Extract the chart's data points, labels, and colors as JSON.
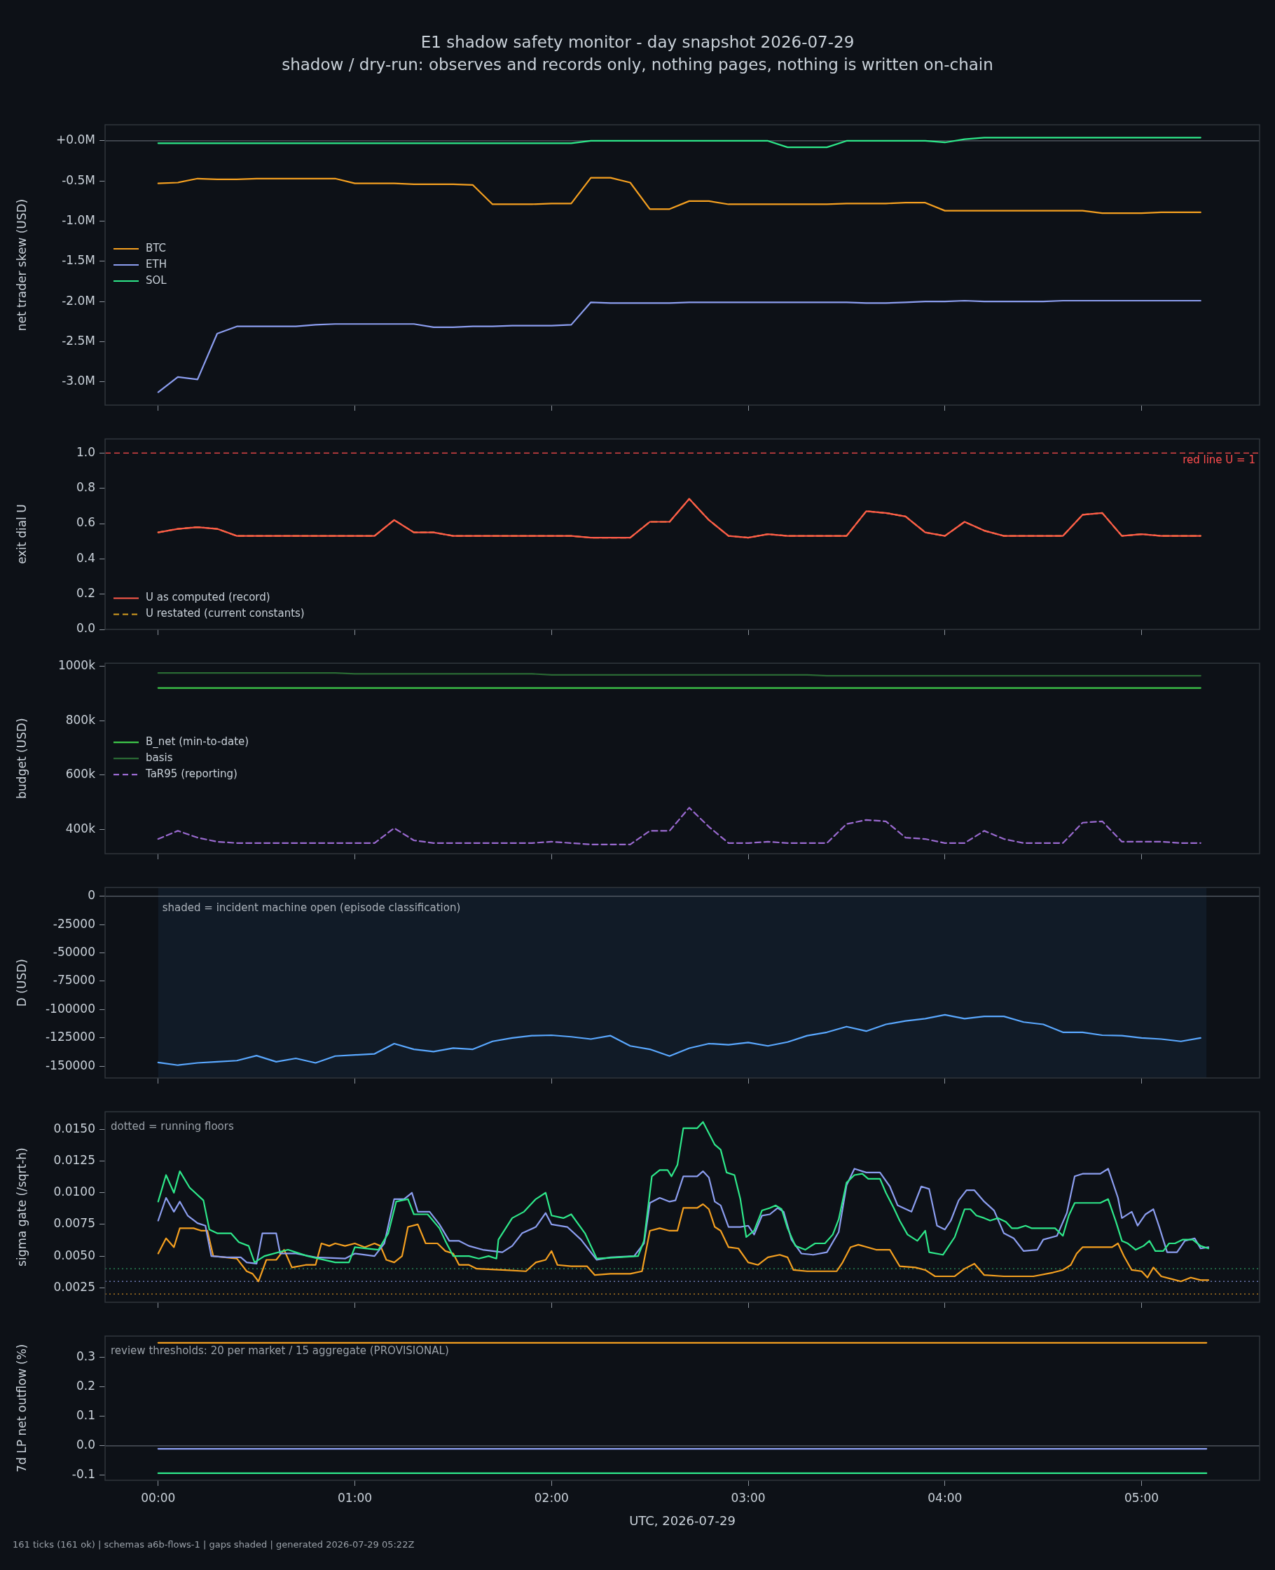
{
  "chart_data": [
    {
      "type": "line",
      "title": "E1 shadow safety monitor - day snapshot 2026-07-29",
      "subtitle": "shadow / dry-run: observes and records only, nothing pages, nothing is written on-chain",
      "ylabel": "net trader skew (USD)",
      "legend": "left",
      "tick_labels": "y",
      "xlim": [
        -0.27,
        5.6
      ],
      "xticks": [
        {
          "value": 0,
          "label": null
        },
        {
          "value": 1,
          "label": null
        },
        {
          "value": 2,
          "label": null
        },
        {
          "value": 3,
          "label": null
        },
        {
          "value": 4,
          "label": null
        },
        {
          "value": 5,
          "label": null
        }
      ],
      "ylim": [
        -3.29,
        0.2
      ],
      "yticks": [
        {
          "value": 0,
          "label": "+0.0M"
        },
        {
          "value": -0.5,
          "label": "-0.5M"
        },
        {
          "value": -1,
          "label": "-1.0M"
        },
        {
          "value": -1.5,
          "label": "-1.5M"
        },
        {
          "value": -2,
          "label": "-2.0M"
        },
        {
          "value": -2.5,
          "label": "-2.5M"
        },
        {
          "value": -3,
          "label": "-3.0M"
        }
      ],
      "ref_lines": [
        {
          "axis": "y",
          "value": 0,
          "color": "#5a616b"
        }
      ],
      "x": [
        0,
        0.1,
        0.2,
        0.3,
        0.4,
        0.5,
        0.6,
        0.7,
        0.8,
        0.9,
        1,
        1.1,
        1.2,
        1.3,
        1.4,
        1.5,
        1.6,
        1.7,
        1.8,
        1.9,
        2,
        2.1,
        2.2,
        2.3,
        2.4,
        2.5,
        2.6,
        2.7,
        2.8,
        2.9,
        3,
        3.1,
        3.2,
        3.3,
        3.4,
        3.5,
        3.6,
        3.7,
        3.8,
        3.9,
        4,
        4.1,
        4.2,
        4.3,
        4.4,
        4.5,
        4.6,
        4.7,
        4.8,
        4.9,
        5,
        5.1,
        5.2,
        5.3
      ],
      "series": [
        {
          "name": "BTC",
          "color": "#f5a020",
          "values": [
            -0.53,
            -0.52,
            -0.47,
            -0.48,
            -0.48,
            -0.47,
            -0.47,
            -0.47,
            -0.47,
            -0.47,
            -0.53,
            -0.53,
            -0.53,
            -0.54,
            -0.54,
            -0.54,
            -0.55,
            -0.79,
            -0.79,
            -0.79,
            -0.78,
            -0.78,
            -0.46,
            -0.46,
            -0.52,
            -0.85,
            -0.85,
            -0.75,
            -0.75,
            -0.79,
            -0.79,
            -0.79,
            -0.79,
            -0.79,
            -0.79,
            -0.78,
            -0.78,
            -0.78,
            -0.77,
            -0.77,
            -0.87,
            -0.87,
            -0.87,
            -0.87,
            -0.87,
            -0.87,
            -0.87,
            -0.87,
            -0.9,
            -0.9,
            -0.9,
            -0.89,
            -0.89,
            -0.89
          ]
        },
        {
          "name": "ETH",
          "color": "#8c9ef0",
          "values": [
            -3.13,
            -2.94,
            -2.97,
            -2.4,
            -2.31,
            -2.31,
            -2.31,
            -2.31,
            -2.29,
            -2.28,
            -2.28,
            -2.28,
            -2.28,
            -2.28,
            -2.32,
            -2.32,
            -2.31,
            -2.31,
            -2.3,
            -2.3,
            -2.3,
            -2.29,
            -2.01,
            -2.02,
            -2.02,
            -2.02,
            -2.02,
            -2.01,
            -2.01,
            -2.01,
            -2.01,
            -2.01,
            -2.01,
            -2.01,
            -2.01,
            -2.01,
            -2.02,
            -2.02,
            -2.01,
            -2,
            -2,
            -1.99,
            -2,
            -2,
            -2,
            -2,
            -1.99,
            -1.99,
            -1.99,
            -1.99,
            -1.99,
            -1.99,
            -1.99,
            -1.99
          ]
        },
        {
          "name": "SOL",
          "color": "#2ee88a",
          "values": [
            -0.03,
            -0.03,
            -0.03,
            -0.03,
            -0.03,
            -0.03,
            -0.03,
            -0.03,
            -0.03,
            -0.03,
            -0.03,
            -0.03,
            -0.03,
            -0.03,
            -0.03,
            -0.03,
            -0.03,
            -0.03,
            -0.03,
            -0.03,
            -0.03,
            -0.03,
            0,
            0,
            0,
            0,
            0,
            0,
            0,
            0,
            0,
            0,
            -0.08,
            -0.08,
            -0.08,
            0,
            0,
            0,
            0,
            0,
            -0.02,
            0.02,
            0.04,
            0.04,
            0.04,
            0.04,
            0.04,
            0.04,
            0.04,
            0.04,
            0.04,
            0.04,
            0.04,
            0.04
          ]
        }
      ]
    },
    {
      "type": "line",
      "ylabel": "exit dial U",
      "legend": "bottom left",
      "tick_labels": "y",
      "xlim": [
        -0.27,
        5.6
      ],
      "xticks": [
        {
          "value": 0,
          "label": null
        },
        {
          "value": 1,
          "label": null
        },
        {
          "value": 2,
          "label": null
        },
        {
          "value": 3,
          "label": null
        },
        {
          "value": 4,
          "label": null
        },
        {
          "value": 5,
          "label": null
        }
      ],
      "ylim": [
        0,
        1.08
      ],
      "yticks": [
        {
          "value": 0,
          "label": "0.0"
        },
        {
          "value": 0.2,
          "label": "0.2"
        },
        {
          "value": 0.4,
          "label": "0.4"
        },
        {
          "value": 0.6,
          "label": "0.6"
        },
        {
          "value": 0.8,
          "label": "0.8"
        },
        {
          "value": 1,
          "label": "1.0"
        }
      ],
      "ref_lines": [
        {
          "axis": "y",
          "value": 1,
          "label": "red line U = 1",
          "color": "#ff4d4d",
          "line_style": "dashed"
        }
      ],
      "x": [
        0,
        0.1,
        0.2,
        0.3,
        0.4,
        0.5,
        0.6,
        0.7,
        0.8,
        0.9,
        1,
        1.1,
        1.2,
        1.3,
        1.4,
        1.5,
        1.6,
        1.7,
        1.8,
        1.9,
        2,
        2.1,
        2.2,
        2.3,
        2.4,
        2.5,
        2.6,
        2.7,
        2.8,
        2.9,
        3,
        3.1,
        3.2,
        3.3,
        3.4,
        3.5,
        3.6,
        3.7,
        3.8,
        3.9,
        4,
        4.1,
        4.2,
        4.3,
        4.4,
        4.5,
        4.6,
        4.7,
        4.8,
        4.9,
        5,
        5.1,
        5.2,
        5.3
      ],
      "series": [
        {
          "name": "U as computed (record)",
          "color": "#ff5a4a",
          "values": [
            0.55,
            0.57,
            0.58,
            0.57,
            0.53,
            0.53,
            0.53,
            0.53,
            0.53,
            0.53,
            0.53,
            0.53,
            0.62,
            0.55,
            0.55,
            0.53,
            0.53,
            0.53,
            0.53,
            0.53,
            0.53,
            0.53,
            0.52,
            0.52,
            0.52,
            0.61,
            0.61,
            0.74,
            0.62,
            0.53,
            0.52,
            0.54,
            0.53,
            0.53,
            0.53,
            0.53,
            0.67,
            0.66,
            0.64,
            0.55,
            0.53,
            0.61,
            0.56,
            0.53,
            0.53,
            0.53,
            0.53,
            0.65,
            0.66,
            0.53,
            0.54,
            0.53,
            0.53,
            0.53
          ]
        },
        {
          "name": "U restated (current constants)",
          "color": "#d9a020",
          "line_style": "dashed",
          "values": [
            0.55,
            0.57,
            0.58,
            0.57,
            0.53,
            0.53,
            0.53,
            0.53,
            0.53,
            0.53,
            0.53,
            0.53,
            0.62,
            0.55,
            0.55,
            0.53,
            0.53,
            0.53,
            0.53,
            0.53,
            0.53,
            0.53,
            0.52,
            0.52,
            0.52,
            0.61,
            0.61,
            0.74,
            0.62,
            0.53,
            0.52,
            0.54,
            0.53,
            0.53,
            0.53,
            0.53,
            0.67,
            0.66,
            0.64,
            0.55,
            0.53,
            0.61,
            0.56,
            0.53,
            0.53,
            0.53,
            0.53,
            0.65,
            0.66,
            0.53,
            0.54,
            0.53,
            0.53,
            0.53
          ]
        }
      ]
    },
    {
      "type": "line",
      "ylabel": "budget (USD)",
      "legend": "left",
      "tick_labels": "y",
      "xlim": [
        -0.27,
        5.6
      ],
      "xticks": [
        {
          "value": 0,
          "label": null
        },
        {
          "value": 1,
          "label": null
        },
        {
          "value": 2,
          "label": null
        },
        {
          "value": 3,
          "label": null
        },
        {
          "value": 4,
          "label": null
        },
        {
          "value": 5,
          "label": null
        }
      ],
      "ylim": [
        311000,
        1011000
      ],
      "yticks": [
        {
          "value": 400000,
          "label": "400k"
        },
        {
          "value": 600000,
          "label": "600k"
        },
        {
          "value": 800000,
          "label": "800k"
        },
        {
          "value": 1000000,
          "label": "1000k"
        }
      ],
      "x": [
        0,
        0.1,
        0.2,
        0.3,
        0.4,
        0.5,
        0.6,
        0.7,
        0.8,
        0.9,
        1,
        1.1,
        1.2,
        1.3,
        1.4,
        1.5,
        1.6,
        1.7,
        1.8,
        1.9,
        2,
        2.1,
        2.2,
        2.3,
        2.4,
        2.5,
        2.6,
        2.7,
        2.8,
        2.9,
        3,
        3.1,
        3.2,
        3.3,
        3.4,
        3.5,
        3.6,
        3.7,
        3.8,
        3.9,
        4,
        4.1,
        4.2,
        4.3,
        4.4,
        4.5,
        4.6,
        4.7,
        4.8,
        4.9,
        5,
        5.1,
        5.2,
        5.3
      ],
      "series": [
        {
          "name": "B_net (min-to-date)",
          "color": "#3ec94a",
          "values": [
            920000,
            920000,
            920000,
            920000,
            920000,
            920000,
            920000,
            920000,
            920000,
            920000,
            920000,
            920000,
            920000,
            920000,
            920000,
            920000,
            920000,
            920000,
            920000,
            920000,
            920000,
            920000,
            920000,
            920000,
            920000,
            920000,
            920000,
            920000,
            920000,
            920000,
            920000,
            920000,
            920000,
            920000,
            920000,
            920000,
            920000,
            920000,
            920000,
            920000,
            920000,
            920000,
            920000,
            920000,
            920000,
            920000,
            920000,
            920000,
            920000,
            920000,
            920000,
            920000,
            920000,
            920000
          ]
        },
        {
          "name": "basis",
          "color": "#2a6a34",
          "values": [
            975000,
            975000,
            975000,
            975000,
            975000,
            975000,
            975000,
            975000,
            975000,
            975000,
            972000,
            972000,
            972000,
            972000,
            972000,
            972000,
            972000,
            972000,
            972000,
            972000,
            968000,
            968000,
            968000,
            968000,
            968000,
            968000,
            968000,
            968000,
            968000,
            968000,
            968000,
            968000,
            968000,
            968000,
            965000,
            965000,
            965000,
            965000,
            965000,
            965000,
            965000,
            965000,
            965000,
            965000,
            965000,
            965000,
            965000,
            965000,
            965000,
            965000,
            965000,
            965000,
            965000,
            965000
          ]
        },
        {
          "name": "TaR95 (reporting)",
          "color": "#9a6ad0",
          "line_style": "dashed",
          "values": [
            365000,
            395000,
            370000,
            355000,
            350000,
            350000,
            350000,
            350000,
            350000,
            350000,
            350000,
            350000,
            405000,
            360000,
            350000,
            350000,
            350000,
            350000,
            350000,
            350000,
            355000,
            350000,
            345000,
            345000,
            345000,
            395000,
            395000,
            480000,
            410000,
            350000,
            350000,
            355000,
            350000,
            350000,
            350000,
            420000,
            435000,
            430000,
            370000,
            365000,
            350000,
            350000,
            395000,
            365000,
            350000,
            350000,
            350000,
            425000,
            430000,
            355000,
            355000,
            355000,
            350000,
            350000
          ]
        }
      ]
    },
    {
      "type": "line",
      "ylabel": "D (USD)",
      "tick_labels": "y",
      "xlim": [
        -0.27,
        5.6
      ],
      "xticks": [
        {
          "value": 0,
          "label": null
        },
        {
          "value": 1,
          "label": null
        },
        {
          "value": 2,
          "label": null
        },
        {
          "value": 3,
          "label": null
        },
        {
          "value": 4,
          "label": null
        },
        {
          "value": 5,
          "label": null
        }
      ],
      "ylim": [
        -160300,
        7700
      ],
      "yticks": [
        0,
        -25000,
        -50000,
        -75000,
        -100000,
        -125000,
        -150000
      ],
      "ref_lines": [
        {
          "axis": "y",
          "value": 0,
          "color": "#5a616b"
        }
      ],
      "bands": [
        {
          "axis": "x",
          "from": 0,
          "to": 5.33,
          "label": "shaded = incident machine open (episode classification)",
          "color": "#111b27"
        }
      ],
      "x": [
        0,
        0.1,
        0.2,
        0.3,
        0.4,
        0.5,
        0.6,
        0.7,
        0.8,
        0.9,
        1,
        1.1,
        1.2,
        1.3,
        1.4,
        1.5,
        1.6,
        1.7,
        1.8,
        1.9,
        2,
        2.1,
        2.2,
        2.3,
        2.4,
        2.5,
        2.6,
        2.7,
        2.8,
        2.9,
        3,
        3.1,
        3.2,
        3.3,
        3.4,
        3.5,
        3.6,
        3.7,
        3.8,
        3.9,
        4,
        4.1,
        4.2,
        4.3,
        4.4,
        4.5,
        4.6,
        4.7,
        4.8,
        4.9,
        5,
        5.1,
        5.2,
        5.3
      ],
      "series": [
        {
          "color": "#5aa8ff",
          "values": [
            -146600,
            -149000,
            -147000,
            -146000,
            -145000,
            -140600,
            -146000,
            -143000,
            -147000,
            -141000,
            -140000,
            -139000,
            -130000,
            -135000,
            -137000,
            -134000,
            -135000,
            -128000,
            -125000,
            -123000,
            -122600,
            -124000,
            -126000,
            -123000,
            -132000,
            -135000,
            -141000,
            -134000,
            -130000,
            -131000,
            -129000,
            -132000,
            -128600,
            -123000,
            -120000,
            -115000,
            -119000,
            -113000,
            -110000,
            -108000,
            -104600,
            -108000,
            -106000,
            -106000,
            -111000,
            -113000,
            -120000,
            -120000,
            -122600,
            -123000,
            -125000,
            -126000,
            -128000,
            -125000
          ]
        }
      ]
    },
    {
      "type": "line",
      "ylabel": "sigma gate (/sqrt-h)",
      "tick_labels": "y",
      "annotations": [
        "dotted = running floors"
      ],
      "xlim": [
        -0.27,
        5.6
      ],
      "xticks": [
        {
          "value": 0,
          "label": null
        },
        {
          "value": 1,
          "label": null
        },
        {
          "value": 2,
          "label": null
        },
        {
          "value": 3,
          "label": null
        },
        {
          "value": 4,
          "label": null
        },
        {
          "value": 5,
          "label": null
        }
      ],
      "ylim": [
        0.00135,
        0.0164
      ],
      "yticks": [
        0.0025,
        {
          "value": 0.005,
          "label": "0.0050"
        },
        0.0075,
        {
          "value": 0.01,
          "label": "0.0100"
        },
        0.0125,
        {
          "value": 0.015,
          "label": "0.0150"
        }
      ],
      "ref_lines": [
        {
          "axis": "y",
          "value": 0.004,
          "color": "#2e9a60",
          "line_style": "dotted"
        },
        {
          "axis": "y",
          "value": 0.003,
          "color": "#6a78b0",
          "line_style": "dotted"
        },
        {
          "axis": "y",
          "value": 0.002,
          "color": "#a87420",
          "line_style": "dotted"
        }
      ],
      "series": [
        {
          "color": "#2ee88a",
          "x": [
            0,
            0.04,
            0.08,
            0.11,
            0.16,
            0.23,
            0.26,
            0.3,
            0.37,
            0.41,
            0.46,
            0.49,
            0.54,
            0.66,
            0.76,
            0.9,
            0.97,
            1,
            1.12,
            1.17,
            1.21,
            1.27,
            1.3,
            1.37,
            1.43,
            1.46,
            1.5,
            1.58,
            1.63,
            1.68,
            1.72,
            1.73,
            1.8,
            1.86,
            1.92,
            1.97,
            2,
            2.06,
            2.1,
            2.17,
            2.23,
            2.34,
            2.44,
            2.47,
            2.51,
            2.55,
            2.59,
            2.61,
            2.64,
            2.67,
            2.74,
            2.77,
            2.79,
            2.83,
            2.86,
            2.89,
            2.93,
            2.96,
            2.99,
            3.03,
            3.07,
            3.11,
            3.14,
            3.17,
            3.2,
            3.24,
            3.29,
            3.34,
            3.39,
            3.43,
            3.46,
            3.5,
            3.54,
            3.58,
            3.61,
            3.67,
            3.7,
            3.74,
            3.77,
            3.81,
            3.86,
            3.9,
            3.92,
            3.99,
            4.05,
            4.1,
            4.13,
            4.16,
            4.2,
            4.23,
            4.27,
            4.31,
            4.34,
            4.37,
            4.41,
            4.44,
            4.56,
            4.6,
            4.63,
            4.66,
            4.79,
            4.83,
            4.87,
            4.9,
            4.93,
            4.97,
            5.01,
            5.04,
            5.07,
            5.11,
            5.14,
            5.17,
            5.21,
            5.26,
            5.3,
            5.34
          ],
          "values": [
            0.0093,
            0.0114,
            0.01,
            0.0117,
            0.0104,
            0.0094,
            0.0071,
            0.0068,
            0.0068,
            0.0061,
            0.0058,
            0.0045,
            0.005,
            0.0055,
            0.005,
            0.0045,
            0.0045,
            0.0057,
            0.0055,
            0.0068,
            0.0093,
            0.0095,
            0.0083,
            0.0083,
            0.0072,
            0.0062,
            0.005,
            0.005,
            0.0048,
            0.005,
            0.0048,
            0.0063,
            0.008,
            0.0085,
            0.0095,
            0.01,
            0.0082,
            0.008,
            0.0083,
            0.0068,
            0.0048,
            0.0049,
            0.005,
            0.0062,
            0.0113,
            0.0118,
            0.0118,
            0.0113,
            0.0122,
            0.0151,
            0.0151,
            0.0156,
            0.015,
            0.0138,
            0.0134,
            0.0116,
            0.0114,
            0.0095,
            0.0065,
            0.007,
            0.0086,
            0.0088,
            0.009,
            0.0087,
            0.0072,
            0.0058,
            0.0055,
            0.006,
            0.006,
            0.0067,
            0.0079,
            0.0108,
            0.0114,
            0.0115,
            0.0111,
            0.0111,
            0.01,
            0.0088,
            0.0078,
            0.0067,
            0.0062,
            0.007,
            0.0053,
            0.0051,
            0.0065,
            0.0087,
            0.0087,
            0.0082,
            0.008,
            0.0078,
            0.008,
            0.0077,
            0.0072,
            0.0072,
            0.0074,
            0.0072,
            0.0072,
            0.0066,
            0.0082,
            0.0092,
            0.0092,
            0.0095,
            0.0077,
            0.0062,
            0.006,
            0.0055,
            0.0058,
            0.0062,
            0.0054,
            0.0054,
            0.006,
            0.006,
            0.0063,
            0.0063,
            0.0058,
            0.0056
          ]
        },
        {
          "color": "#8c9ef0",
          "x": [
            0,
            0.04,
            0.08,
            0.11,
            0.15,
            0.2,
            0.24,
            0.27,
            0.35,
            0.42,
            0.45,
            0.5,
            0.53,
            0.6,
            0.62,
            0.7,
            0.8,
            0.95,
            1,
            1.1,
            1.15,
            1.2,
            1.25,
            1.29,
            1.32,
            1.38,
            1.43,
            1.48,
            1.53,
            1.58,
            1.65,
            1.75,
            1.8,
            1.85,
            1.92,
            1.97,
            2,
            2.08,
            2.15,
            2.23,
            2.3,
            2.42,
            2.47,
            2.5,
            2.55,
            2.6,
            2.63,
            2.67,
            2.74,
            2.77,
            2.8,
            2.83,
            2.86,
            2.9,
            2.96,
            3,
            3.03,
            3.07,
            3.11,
            3.15,
            3.18,
            3.22,
            3.27,
            3.33,
            3.4,
            3.46,
            3.5,
            3.54,
            3.6,
            3.67,
            3.72,
            3.76,
            3.83,
            3.88,
            3.92,
            3.96,
            4,
            4.03,
            4.07,
            4.11,
            4.15,
            4.2,
            4.25,
            4.3,
            4.35,
            4.4,
            4.47,
            4.5,
            4.57,
            4.62,
            4.66,
            4.7,
            4.79,
            4.83,
            4.88,
            4.9,
            4.95,
            4.98,
            5.02,
            5.06,
            5.09,
            5.13,
            5.18,
            5.22,
            5.27,
            5.3,
            5.34
          ],
          "values": [
            0.0078,
            0.0096,
            0.0085,
            0.0093,
            0.0082,
            0.0076,
            0.0074,
            0.005,
            0.0049,
            0.0049,
            0.0045,
            0.0044,
            0.0068,
            0.0068,
            0.0052,
            0.0052,
            0.0049,
            0.0048,
            0.0052,
            0.005,
            0.006,
            0.0095,
            0.0095,
            0.01,
            0.0085,
            0.0085,
            0.0075,
            0.0062,
            0.0062,
            0.0058,
            0.0055,
            0.0053,
            0.0058,
            0.0068,
            0.0073,
            0.0084,
            0.0075,
            0.0073,
            0.0063,
            0.0047,
            0.0049,
            0.005,
            0.006,
            0.0092,
            0.0096,
            0.0093,
            0.0094,
            0.0113,
            0.0113,
            0.0117,
            0.0112,
            0.0093,
            0.009,
            0.0073,
            0.0073,
            0.0074,
            0.0067,
            0.0082,
            0.0083,
            0.0088,
            0.0085,
            0.0063,
            0.0052,
            0.0051,
            0.0053,
            0.0069,
            0.0106,
            0.0119,
            0.0116,
            0.0116,
            0.0105,
            0.009,
            0.0085,
            0.0105,
            0.0103,
            0.0074,
            0.0071,
            0.0078,
            0.0094,
            0.0102,
            0.0102,
            0.0093,
            0.0086,
            0.0068,
            0.0064,
            0.0054,
            0.0055,
            0.0063,
            0.0066,
            0.0084,
            0.0113,
            0.0115,
            0.0115,
            0.0119,
            0.0096,
            0.008,
            0.0085,
            0.0074,
            0.0083,
            0.0087,
            0.0073,
            0.0053,
            0.0053,
            0.0062,
            0.0064,
            0.0056,
            0.0057
          ]
        },
        {
          "color": "#f5a020",
          "x": [
            0,
            0.04,
            0.08,
            0.11,
            0.18,
            0.22,
            0.25,
            0.28,
            0.4,
            0.45,
            0.48,
            0.51,
            0.55,
            0.6,
            0.64,
            0.68,
            0.75,
            0.8,
            0.83,
            0.87,
            0.9,
            0.95,
            1,
            1.05,
            1.1,
            1.13,
            1.16,
            1.2,
            1.24,
            1.27,
            1.32,
            1.36,
            1.42,
            1.46,
            1.5,
            1.53,
            1.58,
            1.62,
            1.75,
            1.87,
            1.92,
            1.97,
            2,
            2.03,
            2.1,
            2.18,
            2.22,
            2.3,
            2.4,
            2.46,
            2.5,
            2.55,
            2.6,
            2.64,
            2.67,
            2.74,
            2.77,
            2.8,
            2.83,
            2.86,
            2.9,
            2.95,
            3,
            3.05,
            3.1,
            3.16,
            3.2,
            3.23,
            3.3,
            3.45,
            3.48,
            3.52,
            3.56,
            3.65,
            3.72,
            3.77,
            3.85,
            3.9,
            3.95,
            4.05,
            4.1,
            4.15,
            4.2,
            4.3,
            4.45,
            4.55,
            4.6,
            4.64,
            4.67,
            4.7,
            4.85,
            4.88,
            4.91,
            4.95,
            5,
            5.03,
            5.06,
            5.1,
            5.15,
            5.2,
            5.25,
            5.3,
            5.34
          ],
          "values": [
            0.0052,
            0.0064,
            0.0057,
            0.0072,
            0.0072,
            0.007,
            0.007,
            0.005,
            0.0048,
            0.0038,
            0.0036,
            0.003,
            0.0047,
            0.0047,
            0.0055,
            0.0041,
            0.0043,
            0.0043,
            0.006,
            0.0058,
            0.006,
            0.0058,
            0.006,
            0.0057,
            0.006,
            0.0058,
            0.0047,
            0.0045,
            0.005,
            0.0073,
            0.0075,
            0.006,
            0.006,
            0.0054,
            0.0052,
            0.0043,
            0.0043,
            0.004,
            0.0039,
            0.0038,
            0.0045,
            0.0047,
            0.0054,
            0.0043,
            0.0042,
            0.0042,
            0.0035,
            0.0036,
            0.0036,
            0.0038,
            0.007,
            0.0072,
            0.007,
            0.007,
            0.0088,
            0.0088,
            0.0091,
            0.0087,
            0.0073,
            0.007,
            0.0057,
            0.0056,
            0.0045,
            0.0043,
            0.0049,
            0.0051,
            0.0049,
            0.0039,
            0.0038,
            0.0038,
            0.0045,
            0.0057,
            0.0059,
            0.0055,
            0.0055,
            0.0042,
            0.0041,
            0.0039,
            0.0034,
            0.0034,
            0.004,
            0.0044,
            0.0035,
            0.0034,
            0.0034,
            0.0037,
            0.0039,
            0.0043,
            0.0052,
            0.0057,
            0.0057,
            0.006,
            0.005,
            0.0039,
            0.0038,
            0.0033,
            0.0041,
            0.0034,
            0.0032,
            0.003,
            0.0033,
            0.0031,
            0.0031
          ]
        }
      ]
    },
    {
      "type": "line",
      "ylabel": "7d LP net outflow (%)",
      "xlabel": "UTC, 2026-07-29",
      "annotations": [
        "review thresholds: 20 per market / 15 aggregate (PROVISIONAL)",
        "161 ticks (161 ok) | schemas a6b-flows-1 | gaps shaded | generated 2026-07-29 05:22Z"
      ],
      "xlim": [
        -0.27,
        5.6
      ],
      "xticks": [
        {
          "value": 0,
          "label": "00:00"
        },
        {
          "value": 1,
          "label": "01:00"
        },
        {
          "value": 2,
          "label": "02:00"
        },
        {
          "value": 3,
          "label": "03:00"
        },
        {
          "value": 4,
          "label": "04:00"
        },
        {
          "value": 5,
          "label": "05:00"
        }
      ],
      "ylim": [
        -0.117,
        0.373
      ],
      "yticks": [
        -0.1,
        {
          "value": 0,
          "label": "0.0"
        },
        0.1,
        0.2,
        0.3
      ],
      "ref_lines": [
        {
          "axis": "y",
          "value": 0,
          "color": "#5a616b"
        }
      ],
      "x": [
        0,
        5.33
      ],
      "series": [
        {
          "color": "#f5a020",
          "values": [
            0.35,
            0.35
          ]
        },
        {
          "color": "#8c9ef0",
          "values": [
            -0.01,
            -0.01
          ]
        },
        {
          "color": "#2ee88a",
          "values": [
            -0.093,
            -0.093
          ]
        }
      ]
    }
  ]
}
